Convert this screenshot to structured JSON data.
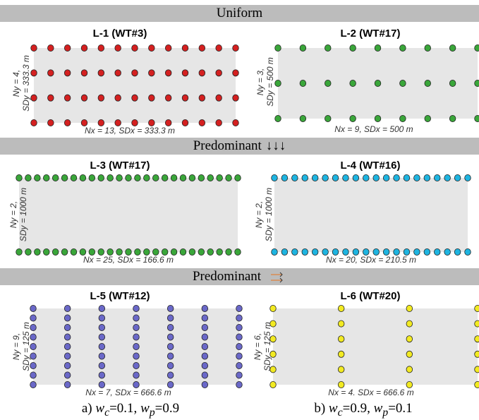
{
  "bands": {
    "uniform": "Uniform",
    "pred_south": "Predominant",
    "pred_south_glyph": "↓↓↓",
    "pred_east": "Predominant"
  },
  "colors": {
    "red": "#d42020",
    "green": "#3aa63a",
    "cyan": "#1eb4e0",
    "purple": "#6a68c8",
    "yellow": "#f2ea22",
    "field": "#e6e6e6",
    "band": "#bcbcbc"
  },
  "layouts": [
    {
      "title": "L-1 (WT#3)",
      "nx": 13,
      "ny": 4,
      "color": "#d42020",
      "xlabel": "Nx = 13, SDx = 333.3 m",
      "ylabel_1": "Ny = 4,",
      "ylabel_2": "SDy = 333.3 m"
    },
    {
      "title": "L-2 (WT#17)",
      "nx": 9,
      "ny": 3,
      "color": "#3aa63a",
      "xlabel": "Nx = 9, SDx = 500 m",
      "ylabel_1": "Ny = 3,",
      "ylabel_2": "SDy = 500 m"
    },
    {
      "title": "L-3 (WT#17)",
      "nx": 25,
      "ny": 2,
      "color": "#3aa63a",
      "xlabel": "Nx = 25, SDx = 166.6 m",
      "ylabel_1": "Ny = 2,",
      "ylabel_2": "SDy = 1000 m"
    },
    {
      "title": "L-4 (WT#16)",
      "nx": 20,
      "ny": 2,
      "color": "#1eb4e0",
      "xlabel": "Nx = 20, SDx = 210.5 m",
      "ylabel_1": "Ny = 2,",
      "ylabel_2": "SDy = 1000 m"
    },
    {
      "title": "L-5 (WT#12)",
      "nx": 7,
      "ny": 9,
      "color": "#6a68c8",
      "xlabel": "Nx = 7, SDx = 666.6 m",
      "ylabel_1": "Ny = 9,",
      "ylabel_2": "SDy = 125 m"
    },
    {
      "title": "L-6 (WT#20)",
      "nx": 4,
      "ny": 6,
      "color": "#f2ea22",
      "xlabel": "Nx = 4. SDx = 666.6 m",
      "ylabel_1": "Ny = 6,",
      "ylabel_2": "SDy = 125 m"
    }
  ],
  "captions": {
    "a_prefix": "a) ",
    "a_wc": "=0.1, ",
    "a_wp": "=0.9",
    "b_prefix": "b) ",
    "b_wc": "=0.9, ",
    "b_wp": "=0.1",
    "w": "w",
    "sub_c": "c",
    "sub_p": "p"
  }
}
